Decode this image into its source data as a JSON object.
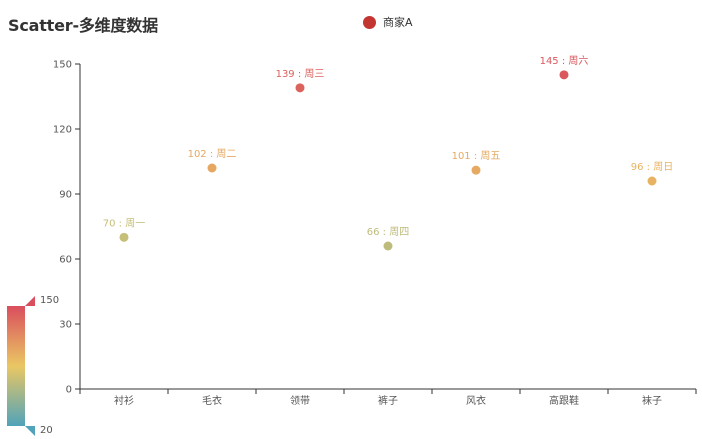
{
  "chart_data": {
    "type": "scatter",
    "title": "Scatter-多维度数据",
    "categories": [
      "衬衫",
      "毛衣",
      "领带",
      "裤子",
      "风衣",
      "高跟鞋",
      "袜子"
    ],
    "series": [
      {
        "name": "商家A",
        "values": [
          70,
          102,
          139,
          66,
          101,
          145,
          96
        ],
        "point_labels": [
          "70 : 周一",
          "102 : 周二",
          "139 : 周三",
          "66 : 周四",
          "101 : 周五",
          "145 : 周六",
          "96 : 周日"
        ]
      }
    ],
    "ylim": [
      0,
      150
    ],
    "y_ticks": [
      0,
      30,
      60,
      90,
      120,
      150
    ],
    "grid": false,
    "legend": {
      "position": "top-center",
      "color": "#c23531"
    },
    "visual_map": {
      "min": 20,
      "max": 150,
      "max_label": "150",
      "min_label": "20",
      "colors": [
        "#50a3ba",
        "#eac763",
        "#d94e5d"
      ],
      "position": "bottom-left"
    }
  }
}
